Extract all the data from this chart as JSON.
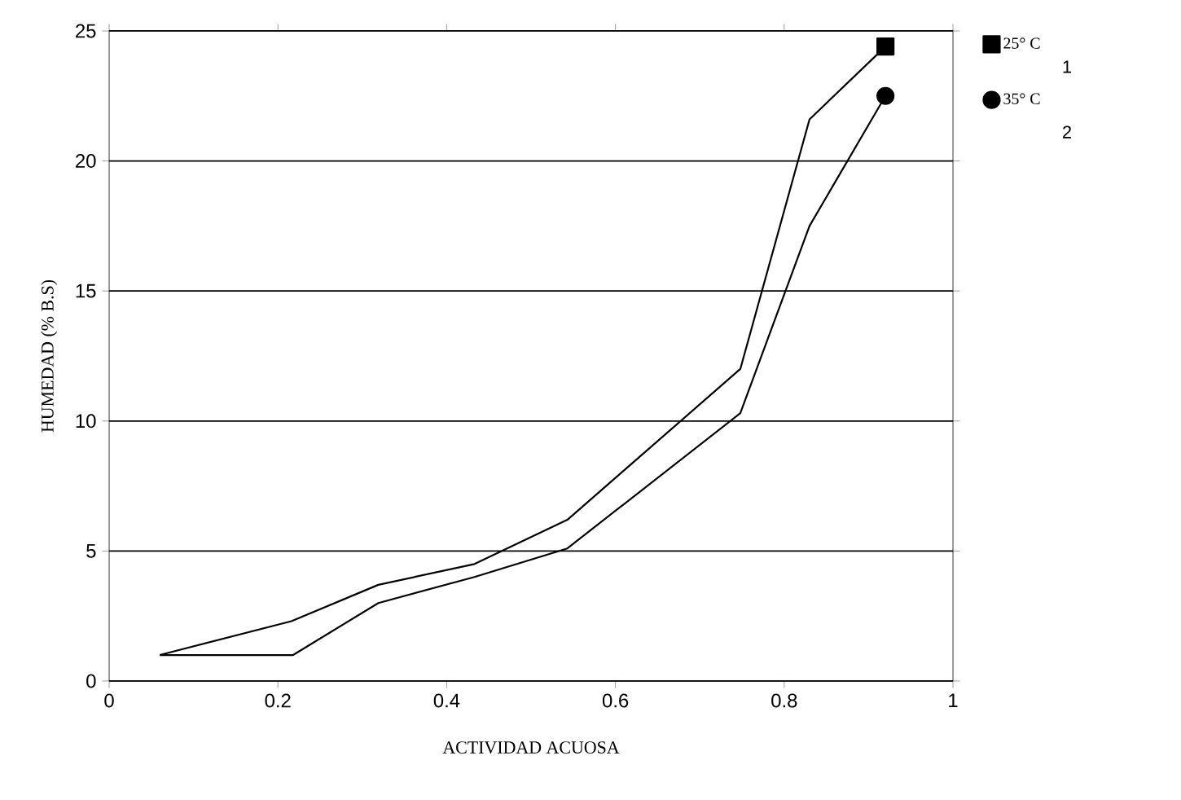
{
  "chart_data": {
    "type": "line",
    "xlabel": "ACTIVIDAD ACUOSA",
    "ylabel": "HUMEDAD (% B.S)",
    "xlim": [
      0,
      1
    ],
    "ylim": [
      0,
      25
    ],
    "xticks": [
      0,
      0.2,
      0.4,
      0.6,
      0.8,
      1
    ],
    "yticks": [
      0,
      5,
      10,
      15,
      20,
      25
    ],
    "grid": "y",
    "legend": "top right",
    "line_style": "solid",
    "annotations": [
      "1",
      "2"
    ],
    "series": [
      {
        "color": "#000000",
        "x": [
          0.06,
          0.216,
          0.319,
          0.433,
          0.543,
          0.748,
          0.83,
          0.92
        ],
        "values": [
          1.0,
          2.3,
          3.7,
          4.5,
          6.2,
          12.0,
          21.6,
          24.4
        ]
      },
      {
        "color": "#000000",
        "x": [
          0.06,
          0.218,
          0.319,
          0.433,
          0.543,
          0.748,
          0.83,
          0.92
        ],
        "values": [
          1.0,
          1.0,
          3.0,
          4.0,
          5.1,
          10.3,
          17.5,
          22.5
        ]
      },
      {
        "type": "scatter",
        "name": "25° C",
        "color": "#000000",
        "marker": "square",
        "x": [
          0.92
        ],
        "values": [
          24.4
        ]
      },
      {
        "type": "scatter",
        "name": "35° C",
        "color": "#000000",
        "marker": "circle",
        "x": [
          0.92
        ],
        "values": [
          22.5
        ]
      }
    ]
  }
}
